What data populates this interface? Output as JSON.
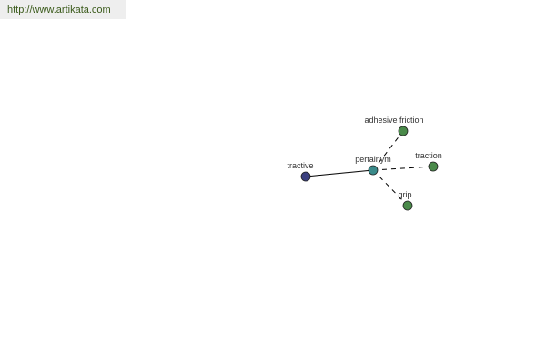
{
  "watermark": "http://www.artikata.com",
  "graph": {
    "center": {
      "label": "pertainym",
      "color": "#3a8a8a"
    },
    "nodes": [
      {
        "id": "tractive",
        "label": "tractive",
        "color": "#3a3f7f",
        "edge": "solid"
      },
      {
        "id": "adhesive-friction",
        "label": "adhesive friction",
        "color": "#4a8a4a",
        "edge": "dashed"
      },
      {
        "id": "traction",
        "label": "traction",
        "color": "#4a8a4a",
        "edge": "dashed"
      },
      {
        "id": "grip",
        "label": "grip",
        "color": "#4a8a4a",
        "edge": "dashed"
      }
    ]
  }
}
